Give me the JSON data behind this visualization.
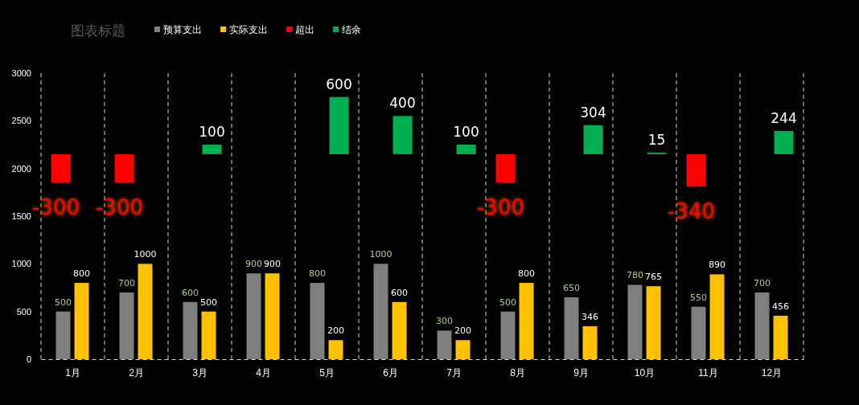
{
  "chart_data": {
    "type": "bar",
    "title": "图表标题",
    "categories": [
      "1月",
      "2月",
      "3月",
      "4月",
      "5月",
      "6月",
      "7月",
      "8月",
      "9月",
      "10月",
      "11月",
      "12月"
    ],
    "series": [
      {
        "name": "预算支出",
        "color": "#7f7f7f",
        "values": [
          500,
          700,
          600,
          900,
          800,
          1000,
          300,
          500,
          650,
          780,
          550,
          700
        ]
      },
      {
        "name": "实际支出",
        "color": "#ffc000",
        "values": [
          800,
          1000,
          500,
          900,
          200,
          600,
          200,
          800,
          346,
          765,
          890,
          456
        ]
      },
      {
        "name": "超出",
        "color": "#ff0000",
        "base": [
          2150,
          2150,
          null,
          null,
          null,
          null,
          null,
          2150,
          null,
          null,
          2150,
          null
        ],
        "values": [
          -300,
          -300,
          null,
          null,
          null,
          null,
          null,
          -300,
          null,
          null,
          -340,
          null
        ]
      },
      {
        "name": "结余",
        "color": "#00b050",
        "base": [
          null,
          null,
          2150,
          null,
          2150,
          2150,
          2150,
          null,
          2150,
          2150,
          null,
          2150
        ],
        "values": [
          null,
          null,
          100,
          null,
          600,
          400,
          100,
          null,
          304,
          15,
          null,
          244
        ]
      }
    ],
    "ylim": [
      0,
      3000
    ],
    "yticks": [
      0,
      500,
      1000,
      1500,
      2000,
      2500,
      3000
    ],
    "grid": "x",
    "legend": "top",
    "data_labels": true
  }
}
